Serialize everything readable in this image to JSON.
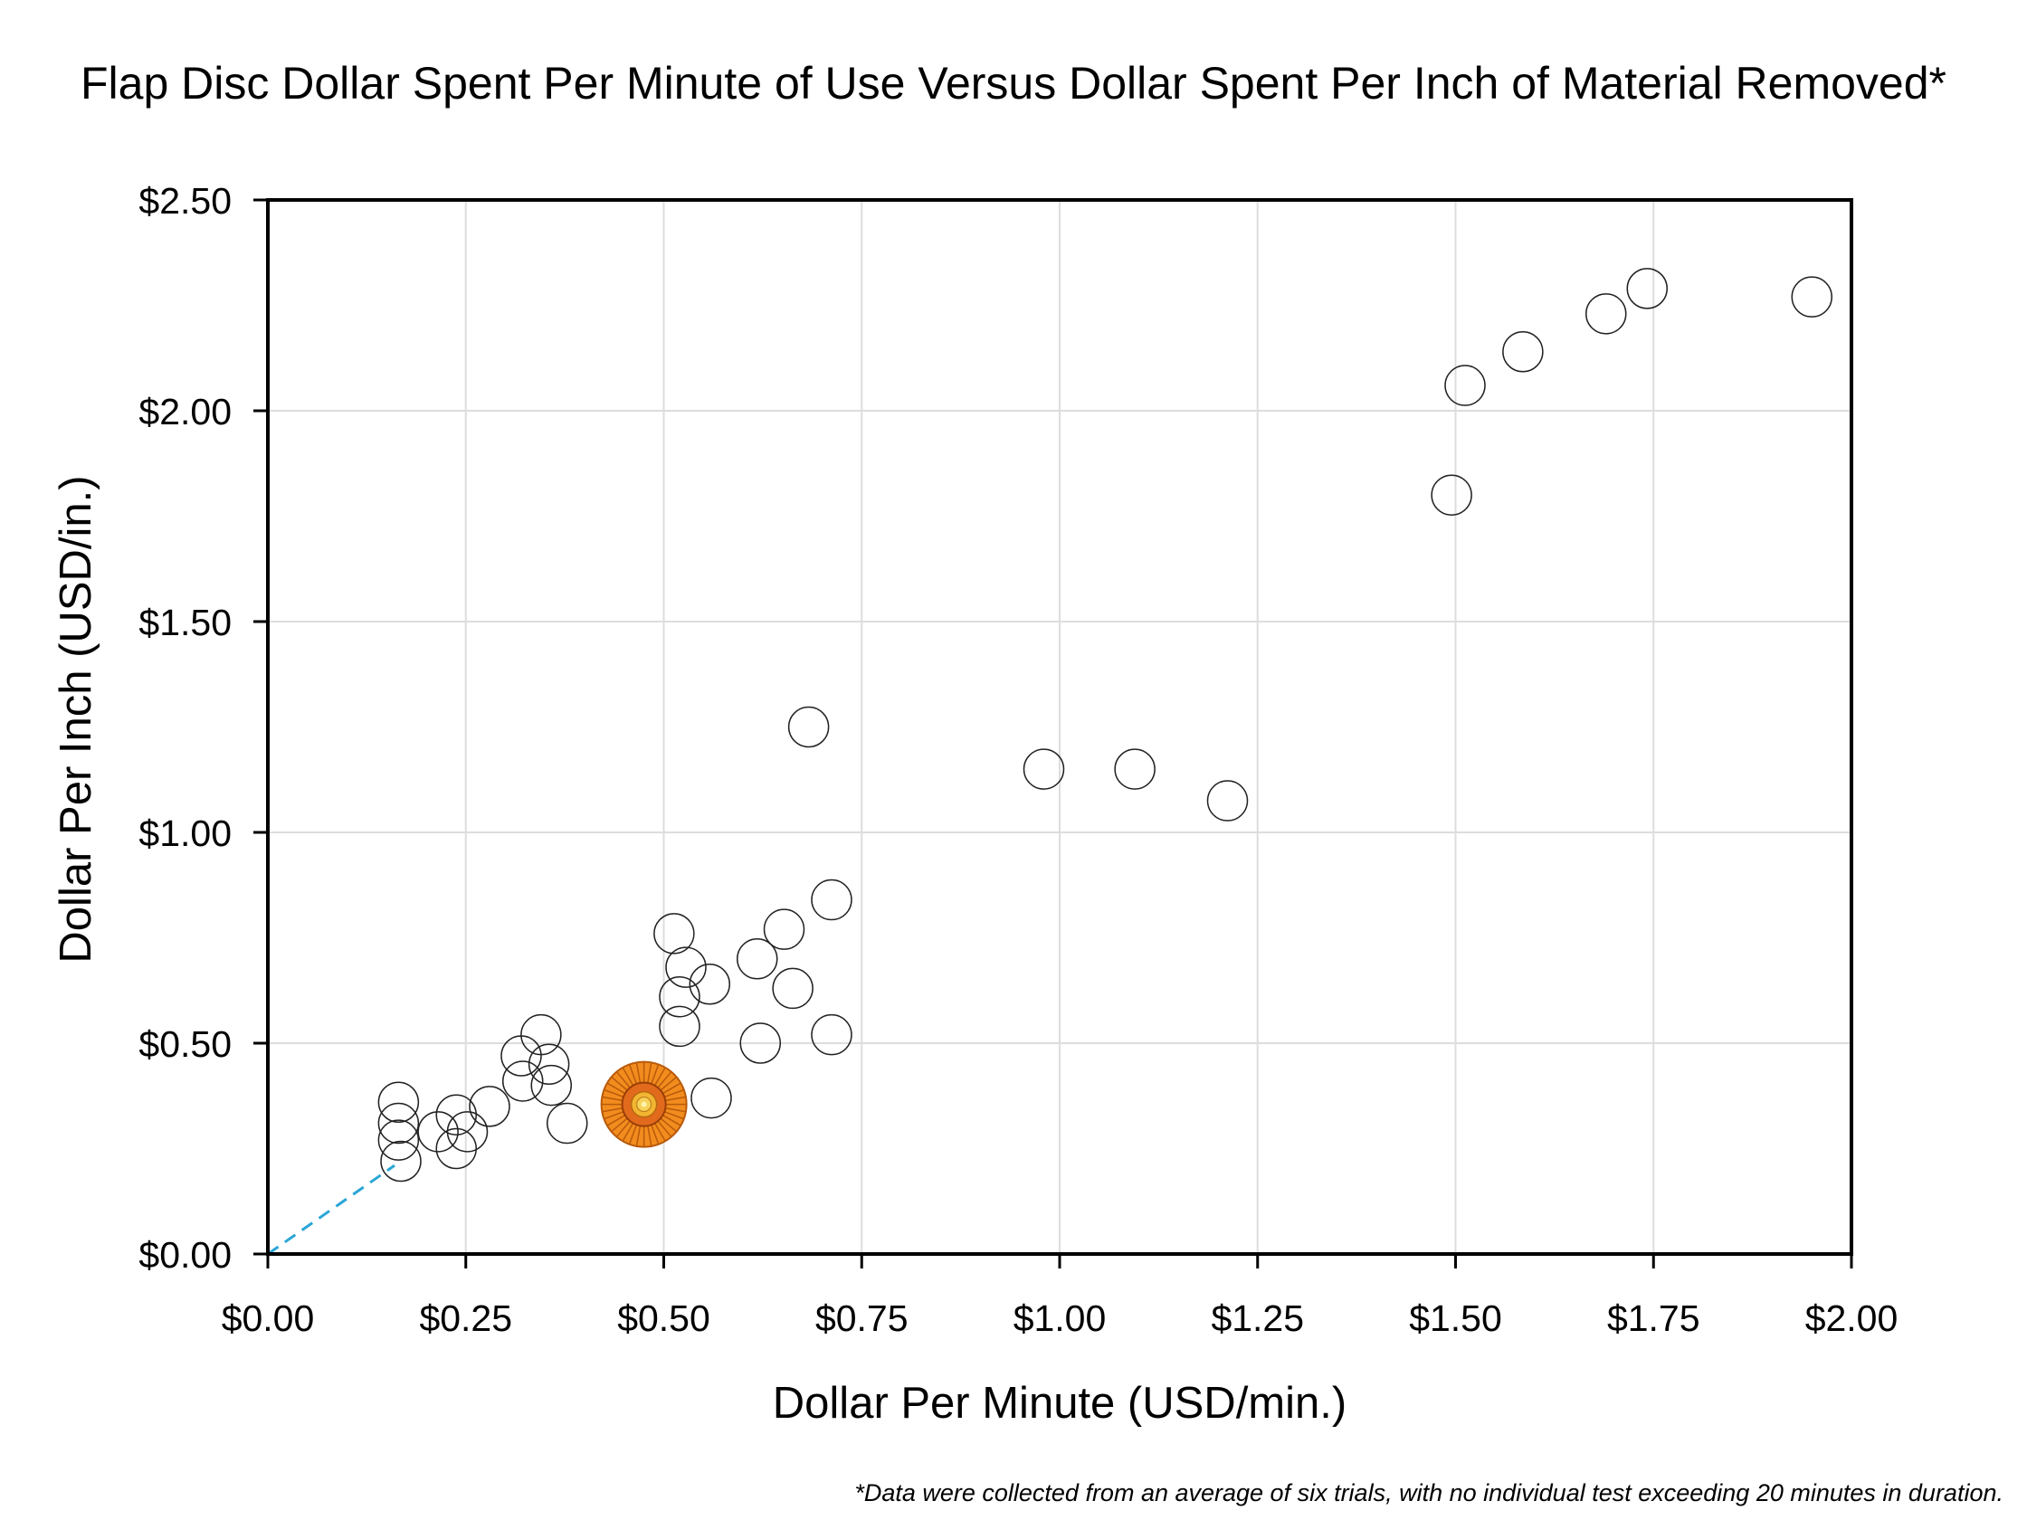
{
  "chart_data": {
    "type": "scatter",
    "title": "Flap Disc Dollar Spent Per Minute of Use Versus Dollar Spent Per Inch of Material Removed*",
    "xlabel": "Dollar Per Minute (USD/min.)",
    "ylabel": "Dollar Per Inch (USD/in.)",
    "xlim": [
      0,
      2.0
    ],
    "ylim": [
      0,
      2.5
    ],
    "xticks": [
      0,
      0.25,
      0.5,
      0.75,
      1.0,
      1.25,
      1.5,
      1.75,
      2.0
    ],
    "xtick_labels": [
      "$0.00",
      "$0.25",
      "$0.50",
      "$0.75",
      "$1.00",
      "$1.25",
      "$1.50",
      "$1.75",
      "$2.00"
    ],
    "yticks": [
      0,
      0.5,
      1.0,
      1.5,
      2.0,
      2.5
    ],
    "ytick_labels": [
      "$0.00",
      "$0.50",
      "$1.00",
      "$1.50",
      "$2.00",
      "$2.50"
    ],
    "grid": true,
    "footnote": "*Data were collected from an average of six trials, with no individual test exceeding 20 minutes in duration.",
    "highlight_color": "#f28c1e",
    "trend_color": "#29a6d6",
    "trend_line": {
      "from": [
        0,
        0
      ],
      "to": [
        0.16,
        0.21
      ]
    },
    "highlight": {
      "x": 0.475,
      "y": 0.355
    },
    "points": [
      {
        "x": 0.165,
        "y": 0.36
      },
      {
        "x": 0.165,
        "y": 0.31
      },
      {
        "x": 0.165,
        "y": 0.27
      },
      {
        "x": 0.168,
        "y": 0.22
      },
      {
        "x": 0.215,
        "y": 0.29
      },
      {
        "x": 0.238,
        "y": 0.33
      },
      {
        "x": 0.238,
        "y": 0.25
      },
      {
        "x": 0.252,
        "y": 0.29
      },
      {
        "x": 0.28,
        "y": 0.35
      },
      {
        "x": 0.32,
        "y": 0.47
      },
      {
        "x": 0.322,
        "y": 0.41
      },
      {
        "x": 0.345,
        "y": 0.52
      },
      {
        "x": 0.355,
        "y": 0.45
      },
      {
        "x": 0.358,
        "y": 0.4
      },
      {
        "x": 0.378,
        "y": 0.31
      },
      {
        "x": 0.513,
        "y": 0.76
      },
      {
        "x": 0.528,
        "y": 0.68
      },
      {
        "x": 0.52,
        "y": 0.61
      },
      {
        "x": 0.52,
        "y": 0.54
      },
      {
        "x": 0.558,
        "y": 0.64
      },
      {
        "x": 0.56,
        "y": 0.37
      },
      {
        "x": 0.618,
        "y": 0.7
      },
      {
        "x": 0.622,
        "y": 0.5
      },
      {
        "x": 0.652,
        "y": 0.77
      },
      {
        "x": 0.663,
        "y": 0.63
      },
      {
        "x": 0.683,
        "y": 1.25
      },
      {
        "x": 0.712,
        "y": 0.84
      },
      {
        "x": 0.712,
        "y": 0.52
      },
      {
        "x": 0.98,
        "y": 1.15
      },
      {
        "x": 1.095,
        "y": 1.15
      },
      {
        "x": 1.212,
        "y": 1.075
      },
      {
        "x": 1.495,
        "y": 1.8
      },
      {
        "x": 1.512,
        "y": 2.06
      },
      {
        "x": 1.585,
        "y": 2.14
      },
      {
        "x": 1.69,
        "y": 2.23
      },
      {
        "x": 1.742,
        "y": 2.29
      },
      {
        "x": 1.95,
        "y": 2.27
      }
    ]
  }
}
